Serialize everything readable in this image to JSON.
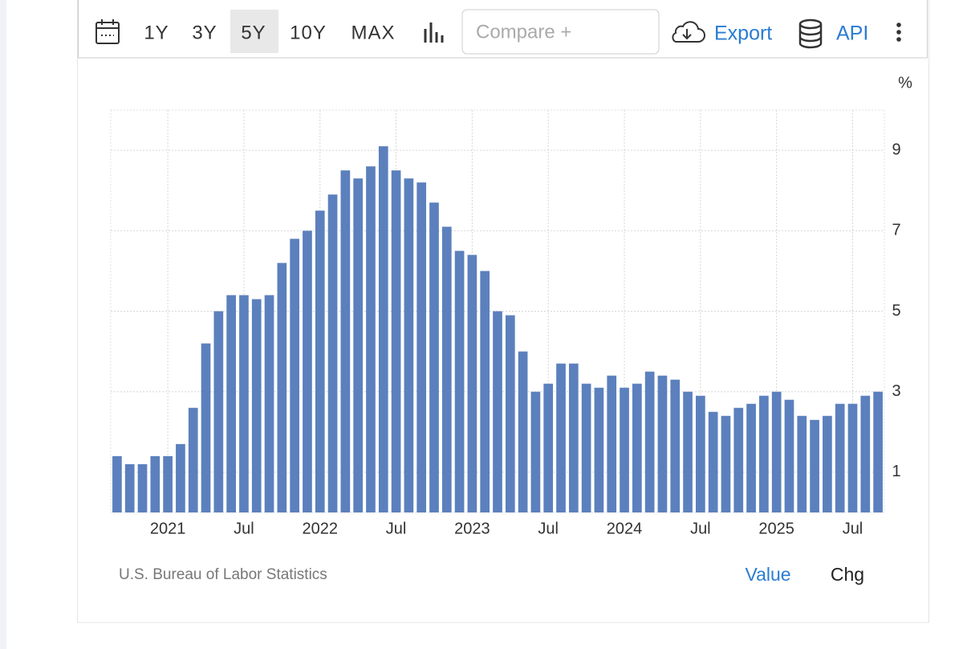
{
  "toolbar": {
    "ranges": [
      "1Y",
      "3Y",
      "5Y",
      "10Y",
      "MAX"
    ],
    "selected": "5Y",
    "compare": "Compare +",
    "export": "Export",
    "api": "API"
  },
  "chart_data": {
    "type": "bar",
    "unit": "%",
    "color": "#5b80bd",
    "categories": [
      null,
      null,
      null,
      null,
      "2021",
      null,
      null,
      null,
      null,
      null,
      "Jul",
      null,
      null,
      null,
      null,
      null,
      "2022",
      null,
      null,
      null,
      null,
      null,
      "Jul",
      null,
      null,
      null,
      null,
      null,
      "2023",
      null,
      null,
      null,
      null,
      null,
      "Jul",
      null,
      null,
      null,
      null,
      null,
      "2024",
      null,
      null,
      null,
      null,
      null,
      "Jul",
      null,
      null,
      null,
      null,
      null,
      "2025",
      null,
      null,
      null,
      null,
      null,
      "Jul",
      null,
      null
    ],
    "values": [
      1.4,
      1.2,
      1.2,
      1.4,
      1.4,
      1.7,
      2.6,
      4.2,
      5.0,
      5.4,
      5.4,
      5.3,
      5.4,
      6.2,
      6.8,
      7.0,
      7.5,
      7.9,
      8.5,
      8.3,
      8.6,
      9.1,
      8.5,
      8.3,
      8.2,
      7.7,
      7.1,
      6.5,
      6.4,
      6.0,
      5.0,
      4.9,
      4.0,
      3.0,
      3.2,
      3.7,
      3.7,
      3.2,
      3.1,
      3.4,
      3.1,
      3.2,
      3.5,
      3.4,
      3.3,
      3.0,
      2.9,
      2.5,
      2.4,
      2.6,
      2.7,
      2.9,
      3.0,
      2.8,
      2.4,
      2.3,
      2.4,
      2.7,
      2.7,
      2.9,
      3.0
    ],
    "ylim": [
      0,
      10
    ],
    "yticks": [
      1,
      3,
      5,
      7,
      9
    ],
    "grid": true
  },
  "footer": {
    "source": "U.S. Bureau of Labor Statistics",
    "tabs": [
      "Value",
      "Chg"
    ],
    "selected": "Value"
  }
}
